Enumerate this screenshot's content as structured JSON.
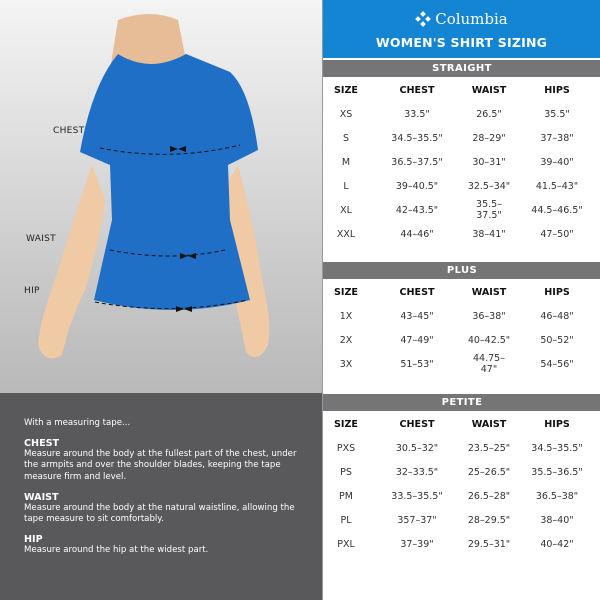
{
  "brand": "Columbia",
  "title": "WOMEN'S SHIRT SIZING",
  "figure_labels": {
    "chest": "CHEST",
    "waist": "WAIST",
    "hip": "HIP"
  },
  "colors": {
    "header_blue": "#1485d2",
    "bar_gray": "#757577",
    "shirt_blue": "#1f6fc6",
    "info_bg": "#59595b"
  },
  "headers": [
    "SIZE",
    "CHEST",
    "WAIST",
    "HIPS"
  ],
  "sections": [
    {
      "name": "STRAIGHT",
      "rows": [
        [
          "XS",
          "33.5\"",
          "26.5\"",
          "35.5\""
        ],
        [
          "S",
          "34.5–35.5\"",
          "28–29\"",
          "37–38\""
        ],
        [
          "M",
          "36.5–37.5\"",
          "30–31\"",
          "39–40\""
        ],
        [
          "L",
          "39–40.5\"",
          "32.5–34\"",
          "41.5–43\""
        ],
        [
          "XL",
          "42–43.5\"",
          "35.5–37.5\"",
          "44.5–46.5\""
        ],
        [
          "XXL",
          "44–46\"",
          "38–41\"",
          "47–50\""
        ]
      ]
    },
    {
      "name": "PLUS",
      "rows": [
        [
          "1X",
          "43–45\"",
          "36–38\"",
          "46–48\""
        ],
        [
          "2X",
          "47–49\"",
          "40–42.5\"",
          "50–52\""
        ],
        [
          "3X",
          "51–53\"",
          "44.75–47\"",
          "54–56\""
        ]
      ]
    },
    {
      "name": "PETITE",
      "rows": [
        [
          "PXS",
          "30.5–32\"",
          "23.5–25\"",
          "34.5–35.5\""
        ],
        [
          "PS",
          "32–33.5\"",
          "25–26.5\"",
          "35.5–36.5\""
        ],
        [
          "PM",
          "33.5–35.5\"",
          "26.5–28\"",
          "36.5–38\""
        ],
        [
          "PL",
          "357–37\"",
          "28–29.5\"",
          "38–40\""
        ],
        [
          "PXL",
          "37–39\"",
          "29.5–31\"",
          "40–42\""
        ]
      ]
    }
  ],
  "info": {
    "intro": "With a measuring tape...",
    "items": [
      {
        "title": "CHEST",
        "text": "Measure around the body at the fullest part of the chest, under the armpits and over the shoulder blades, keeping the tape measure firm and level."
      },
      {
        "title": "WAIST",
        "text": "Measure around the body at the natural waistline, allowing the tape measure to sit comfortably."
      },
      {
        "title": "HIP",
        "text": "Measure around the hip at the widest part."
      }
    ]
  }
}
